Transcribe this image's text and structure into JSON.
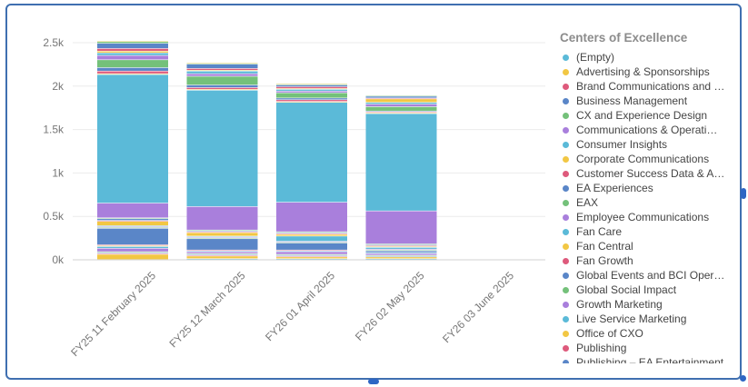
{
  "chart_data": {
    "type": "bar",
    "stacked": true,
    "title": "",
    "xlabel": "",
    "ylabel": "",
    "ylim": [
      0,
      2500
    ],
    "yticks": [
      0,
      500,
      1000,
      1500,
      2000,
      2500
    ],
    "ytick_labels": [
      "0k",
      "0.5k",
      "1k",
      "1.5k",
      "2k",
      "2.5k"
    ],
    "grid": true,
    "legend_position": "right",
    "legend_title": "Centers of Excellence",
    "categories": [
      "FY25 11 February 2025",
      "FY25 12 March 2025",
      "FY26 01 April 2025",
      "FY26 02 May 2025",
      "FY26 03 June 2025"
    ],
    "series": [
      {
        "name": "(Empty)",
        "color": "#5bbad8",
        "values": [
          0,
          10,
          10,
          10,
          0
        ]
      },
      {
        "name": "Advertising & Sponsorships",
        "color": "#f2c744",
        "values": [
          60,
          30,
          20,
          20,
          0
        ]
      },
      {
        "name": "Brand Communications and …",
        "color": "#de5a7c",
        "values": [
          10,
          10,
          10,
          0,
          0
        ]
      },
      {
        "name": "Business Management",
        "color": "#5a86c8",
        "values": [
          10,
          10,
          10,
          10,
          0
        ]
      },
      {
        "name": "CX and Experience Design",
        "color": "#74c17a",
        "values": [
          10,
          10,
          10,
          10,
          0
        ]
      },
      {
        "name": "Communications & Operati…",
        "color": "#a97fdc",
        "values": [
          40,
          20,
          30,
          20,
          0
        ]
      },
      {
        "name": "Consumer Insights",
        "color": "#5bbad8",
        "values": [
          20,
          10,
          10,
          10,
          0
        ]
      },
      {
        "name": "Corporate Communications",
        "color": "#f2c744",
        "values": [
          10,
          0,
          0,
          0,
          0
        ]
      },
      {
        "name": "Customer Success Data & A…",
        "color": "#de5a7c",
        "values": [
          10,
          10,
          10,
          0,
          0
        ]
      },
      {
        "name": "EA Experiences",
        "color": "#5a86c8",
        "values": [
          190,
          130,
          80,
          20,
          0
        ]
      },
      {
        "name": "EAX",
        "color": "#74c17a",
        "values": [
          10,
          10,
          10,
          10,
          0
        ]
      },
      {
        "name": "Employee Communications",
        "color": "#a97fdc",
        "values": [
          10,
          10,
          10,
          10,
          0
        ]
      },
      {
        "name": "Fan Care",
        "color": "#5bbad8",
        "values": [
          10,
          10,
          60,
          20,
          0
        ]
      },
      {
        "name": "Fan Central",
        "color": "#f2c744",
        "values": [
          50,
          40,
          20,
          10,
          0
        ]
      },
      {
        "name": "Fan Growth",
        "color": "#de5a7c",
        "values": [
          10,
          10,
          10,
          10,
          0
        ]
      },
      {
        "name": "Global Events and BCI Oper…",
        "color": "#5a86c8",
        "values": [
          20,
          10,
          10,
          10,
          0
        ]
      },
      {
        "name": "Global Social Impact",
        "color": "#74c17a",
        "values": [
          10,
          10,
          10,
          10,
          0
        ]
      },
      {
        "name": "Growth Marketing",
        "color": "#a97fdc",
        "values": [
          170,
          270,
          340,
          380,
          0
        ]
      },
      {
        "name": "Live Service Marketing",
        "color": "#5bbad8",
        "values": [
          1480,
          1340,
          1150,
          1120,
          0
        ]
      },
      {
        "name": "Office of CXO",
        "color": "#f2c744",
        "values": [
          10,
          10,
          10,
          10,
          0
        ]
      },
      {
        "name": "Publishing",
        "color": "#de5a7c",
        "values": [
          30,
          20,
          20,
          10,
          0
        ]
      },
      {
        "name": "Publishing – EA Entertainment",
        "color": "#5a86c8",
        "values": [
          40,
          30,
          20,
          10,
          0
        ]
      },
      {
        "name": "",
        "color": "#74c17a",
        "values": [
          90,
          100,
          60,
          50,
          0
        ]
      },
      {
        "name": "",
        "color": "#a97fdc",
        "values": [
          50,
          30,
          20,
          30,
          0
        ]
      },
      {
        "name": "",
        "color": "#5bbad8",
        "values": [
          30,
          30,
          20,
          20,
          0
        ]
      },
      {
        "name": "",
        "color": "#f2c744",
        "values": [
          20,
          10,
          10,
          40,
          0
        ]
      },
      {
        "name": "",
        "color": "#de5a7c",
        "values": [
          30,
          20,
          20,
          10,
          0
        ]
      },
      {
        "name": "",
        "color": "#5a86c8",
        "values": [
          60,
          50,
          20,
          20,
          0
        ]
      },
      {
        "name": "",
        "color": "#74c17a",
        "values": [
          20,
          10,
          10,
          10,
          0
        ]
      },
      {
        "name": "",
        "color": "#f2c744",
        "values": [
          10,
          10,
          10,
          0,
          0
        ]
      }
    ]
  }
}
